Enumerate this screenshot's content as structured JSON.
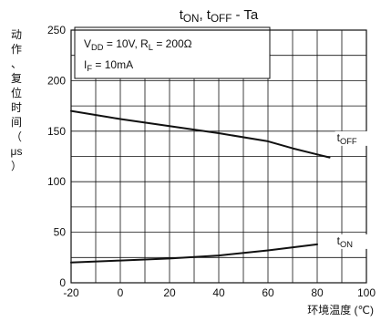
{
  "chart_data": {
    "type": "line",
    "title_parts": [
      {
        "t": "t"
      },
      {
        "t": "ON",
        "sub": true
      },
      {
        "t": ", t"
      },
      {
        "t": "OFF",
        "sub": true
      },
      {
        "t": " - Ta"
      }
    ],
    "xlabel": "环境温度 (℃)",
    "ylabel_chars": [
      "动",
      "作",
      "、",
      "复",
      "位",
      "时",
      "间",
      "（",
      "μs",
      "）"
    ],
    "xlim": [
      -20,
      100
    ],
    "ylim": [
      0,
      250
    ],
    "x_ticks": [
      -20,
      0,
      20,
      40,
      60,
      80,
      100
    ],
    "y_ticks": [
      0,
      50,
      100,
      150,
      200,
      250
    ],
    "grid": true,
    "conditions": [
      [
        {
          "t": "V"
        },
        {
          "t": "DD",
          "sub": true
        },
        {
          "t": " = 10V, R"
        },
        {
          "t": "L",
          "sub": true
        },
        {
          "t": " = 200Ω"
        }
      ],
      [
        {
          "t": "I"
        },
        {
          "t": "F",
          "sub": true
        },
        {
          "t": " = 10mA"
        }
      ]
    ],
    "series": [
      {
        "name_parts": [
          {
            "t": "t"
          },
          {
            "t": "OFF",
            "sub": true
          }
        ],
        "label_at": [
          88,
          140
        ],
        "x": [
          -20,
          0,
          20,
          40,
          60,
          70,
          80,
          85
        ],
        "y": [
          170,
          162,
          155,
          148,
          140,
          133,
          127,
          124
        ]
      },
      {
        "name_parts": [
          {
            "t": "t"
          },
          {
            "t": "ON",
            "sub": true
          }
        ],
        "label_at": [
          88,
          38
        ],
        "x": [
          -20,
          0,
          20,
          40,
          60,
          80
        ],
        "y": [
          20,
          22,
          24,
          27,
          32,
          38
        ]
      }
    ],
    "colors": {
      "line": "#111111",
      "grid": "#111111",
      "background": "#ffffff"
    }
  }
}
